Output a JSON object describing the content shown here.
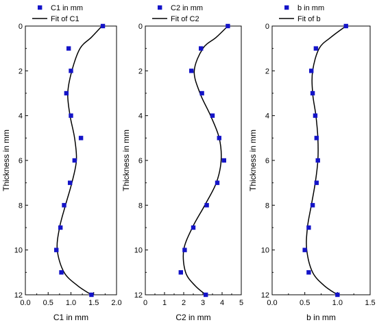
{
  "chart_data": [
    {
      "type": "scatter",
      "xlabel": "C1 in mm",
      "ylabel": "Thickness in mm",
      "xlim": [
        0,
        2.0
      ],
      "ylim": [
        12,
        0
      ],
      "x_ticks": [
        "0.0",
        "0.5",
        "1.0",
        "1.5",
        "2.0"
      ],
      "y_ticks": [
        "0",
        "2",
        "4",
        "6",
        "8",
        "10",
        "12"
      ],
      "legend": {
        "placement": "top",
        "points": "C1 in mm",
        "fit": "Fit of C1"
      },
      "series": [
        {
          "name": "C1 in mm",
          "kind": "points",
          "color": "#1414c8",
          "points": [
            [
              1.7,
              0
            ],
            [
              0.95,
              1
            ],
            [
              1.0,
              2
            ],
            [
              0.9,
              3
            ],
            [
              1.0,
              4
            ],
            [
              1.22,
              5
            ],
            [
              1.08,
              6
            ],
            [
              0.98,
              7
            ],
            [
              0.85,
              8
            ],
            [
              0.77,
              9
            ],
            [
              0.68,
              10
            ],
            [
              0.79,
              11
            ],
            [
              1.45,
              12
            ]
          ]
        },
        {
          "name": "Fit of C1",
          "kind": "line",
          "color": "#000000",
          "points": [
            [
              1.68,
              0
            ],
            [
              1.45,
              0.5
            ],
            [
              1.2,
              1
            ],
            [
              1.02,
              2
            ],
            [
              0.93,
              3
            ],
            [
              0.98,
              4
            ],
            [
              1.08,
              5
            ],
            [
              1.12,
              6
            ],
            [
              1.02,
              7
            ],
            [
              0.88,
              8
            ],
            [
              0.75,
              9
            ],
            [
              0.7,
              10
            ],
            [
              0.85,
              11
            ],
            [
              1.15,
              11.6
            ],
            [
              1.45,
              12
            ]
          ]
        }
      ]
    },
    {
      "type": "scatter",
      "xlabel": "C2 in mm",
      "ylabel": "Thickness in mm",
      "xlim": [
        0,
        5
      ],
      "ylim": [
        12,
        0
      ],
      "x_ticks": [
        "0",
        "1",
        "2",
        "3",
        "4",
        "5"
      ],
      "y_ticks": [
        "0",
        "2",
        "4",
        "6",
        "8",
        "10",
        "12"
      ],
      "legend": {
        "placement": "top",
        "points": "C2 in mm",
        "fit": "Fit of C2"
      },
      "series": [
        {
          "name": "C2 in mm",
          "kind": "points",
          "color": "#1414c8",
          "points": [
            [
              4.3,
              0
            ],
            [
              2.9,
              1
            ],
            [
              2.4,
              2
            ],
            [
              2.95,
              3
            ],
            [
              3.5,
              4
            ],
            [
              3.85,
              5
            ],
            [
              4.1,
              6
            ],
            [
              3.75,
              7
            ],
            [
              3.2,
              8
            ],
            [
              2.5,
              9
            ],
            [
              2.05,
              10
            ],
            [
              1.85,
              11
            ],
            [
              3.15,
              12
            ]
          ]
        },
        {
          "name": "Fit of C2",
          "kind": "line",
          "color": "#000000",
          "points": [
            [
              4.3,
              0
            ],
            [
              3.7,
              0.5
            ],
            [
              3.0,
              1
            ],
            [
              2.55,
              2
            ],
            [
              2.85,
              3
            ],
            [
              3.4,
              4
            ],
            [
              3.85,
              5
            ],
            [
              3.95,
              6
            ],
            [
              3.7,
              7
            ],
            [
              3.1,
              8
            ],
            [
              2.45,
              9
            ],
            [
              2.0,
              10
            ],
            [
              2.1,
              11
            ],
            [
              2.6,
              11.6
            ],
            [
              3.15,
              12
            ]
          ]
        }
      ]
    },
    {
      "type": "scatter",
      "xlabel": "b in mm",
      "ylabel": "Thickness in mm",
      "xlim": [
        0,
        1.5
      ],
      "ylim": [
        12,
        0
      ],
      "x_ticks": [
        "0.0",
        "0.5",
        "1.0",
        "1.5"
      ],
      "y_ticks": [
        "0",
        "2",
        "4",
        "6",
        "8",
        "10",
        "12"
      ],
      "legend": {
        "placement": "top",
        "points": "b in mm",
        "fit": "Fit of b"
      },
      "series": [
        {
          "name": "b in mm",
          "kind": "points",
          "color": "#1414c8",
          "points": [
            [
              1.13,
              0
            ],
            [
              0.67,
              1
            ],
            [
              0.6,
              2
            ],
            [
              0.62,
              3
            ],
            [
              0.66,
              4
            ],
            [
              0.68,
              5
            ],
            [
              0.7,
              6
            ],
            [
              0.68,
              7
            ],
            [
              0.62,
              8
            ],
            [
              0.56,
              9
            ],
            [
              0.5,
              10
            ],
            [
              0.56,
              11
            ],
            [
              1.0,
              12
            ]
          ]
        },
        {
          "name": "Fit of b",
          "kind": "line",
          "color": "#000000",
          "points": [
            [
              1.13,
              0
            ],
            [
              0.9,
              0.5
            ],
            [
              0.72,
              1
            ],
            [
              0.62,
              2
            ],
            [
              0.62,
              3
            ],
            [
              0.67,
              4
            ],
            [
              0.7,
              5
            ],
            [
              0.7,
              6
            ],
            [
              0.66,
              7
            ],
            [
              0.6,
              8
            ],
            [
              0.54,
              9
            ],
            [
              0.53,
              10
            ],
            [
              0.62,
              11
            ],
            [
              0.8,
              11.6
            ],
            [
              1.0,
              12
            ]
          ]
        }
      ]
    }
  ]
}
